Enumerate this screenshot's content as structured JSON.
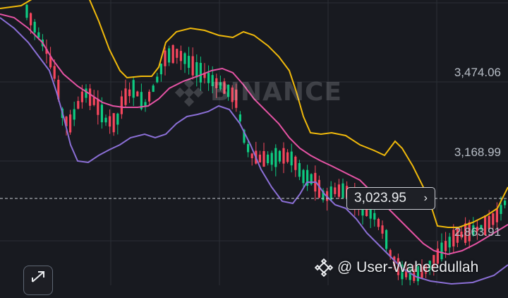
{
  "price_axis": {
    "labels": [
      "3,474.06",
      "3,168.99",
      "2,863.91"
    ]
  },
  "last_price": {
    "value": "3,023.95",
    "chevron": "›"
  },
  "watermark": {
    "text": "BINANCE",
    "icon": "binance-logo"
  },
  "user_tag": {
    "text": "@ User-Waheedullah",
    "icon": "binance-logo"
  },
  "controls": {
    "expand_icon": "expand-arrows-icon"
  },
  "colors": {
    "background": "#181a20",
    "up": "#0ecb81",
    "down": "#f6465d",
    "upper_band": "#f0b90b",
    "middle_band": "#e553a4",
    "lower_band": "#8b6fd6"
  }
}
